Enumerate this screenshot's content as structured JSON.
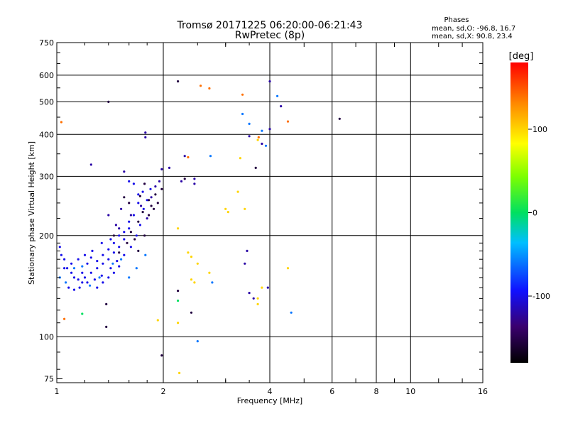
{
  "chart_data": {
    "type": "scatter",
    "title": "Tromsø 20171225 06:20:00-06:21:43",
    "subtitle": "RwPretec (8p)",
    "xlabel": "Frequency [MHz]",
    "ylabel": "Stationary phase Virtual Height [km]",
    "x_scale": "log",
    "y_scale": "log",
    "xlim": [
      1,
      16
    ],
    "ylim": [
      73,
      750
    ],
    "x_ticks": [
      1,
      2,
      4,
      6,
      8,
      10,
      16
    ],
    "y_ticks": [
      75,
      100,
      200,
      300,
      400,
      500,
      600,
      750
    ],
    "grid": true,
    "legend": {
      "title": "Phases",
      "lines": [
        "mean, sd,O: -96.8, 16.7",
        "mean, sd,X:  90.8, 23.4"
      ],
      "position": "top-right"
    },
    "colorbar": {
      "label": "[deg]",
      "range": [
        -180,
        180
      ],
      "ticks": [
        100,
        0,
        -100
      ],
      "colormap": "rainbow"
    },
    "colorbar_ticks_text": [
      "100",
      "0",
      "-100"
    ],
    "series": [
      {
        "phase_deg": -100,
        "points": [
          [
            1.02,
            185
          ],
          [
            1.03,
            175
          ],
          [
            1.05,
            170
          ],
          [
            1.07,
            160
          ],
          [
            1.1,
            155
          ],
          [
            1.12,
            150
          ],
          [
            1.15,
            148
          ],
          [
            1.18,
            145
          ],
          [
            1.2,
            150
          ],
          [
            1.25,
            155
          ],
          [
            1.3,
            160
          ],
          [
            1.35,
            165
          ],
          [
            1.4,
            170
          ],
          [
            1.45,
            178
          ],
          [
            1.5,
            185
          ],
          [
            1.55,
            195
          ],
          [
            1.6,
            210
          ],
          [
            1.65,
            230
          ],
          [
            1.7,
            250
          ],
          [
            1.75,
            270
          ],
          [
            1.08,
            140
          ],
          [
            1.12,
            138
          ],
          [
            1.16,
            140
          ],
          [
            1.22,
            145
          ],
          [
            1.28,
            148
          ],
          [
            1.34,
            152
          ],
          [
            1.42,
            160
          ],
          [
            1.48,
            168
          ],
          [
            1.55,
            175
          ],
          [
            1.62,
            185
          ],
          [
            1.68,
            200
          ],
          [
            1.72,
            215
          ],
          [
            1.76,
            240
          ],
          [
            1.8,
            255
          ],
          [
            1.84,
            275
          ],
          [
            1.6,
            290
          ],
          [
            1.65,
            285
          ],
          [
            1.7,
            265
          ],
          [
            1.05,
            160
          ],
          [
            1.1,
            165
          ],
          [
            1.15,
            170
          ],
          [
            1.2,
            175
          ],
          [
            1.25,
            172
          ],
          [
            1.3,
            168
          ],
          [
            1.35,
            175
          ],
          [
            1.4,
            182
          ],
          [
            1.45,
            190
          ],
          [
            1.5,
            200
          ],
          [
            1.55,
            205
          ],
          [
            1.6,
            220
          ],
          [
            1.3,
            140
          ],
          [
            1.35,
            145
          ],
          [
            1.4,
            150
          ],
          [
            1.45,
            155
          ],
          [
            1.5,
            162
          ],
          [
            1.18,
            155
          ],
          [
            1.22,
            165
          ],
          [
            1.26,
            180
          ],
          [
            1.34,
            190
          ],
          [
            1.42,
            195
          ]
        ]
      },
      {
        "phase_deg": -120,
        "points": [
          [
            1.25,
            325
          ],
          [
            1.55,
            310
          ],
          [
            1.78,
            405
          ],
          [
            1.78,
            392
          ],
          [
            1.98,
            315
          ],
          [
            2.08,
            318
          ],
          [
            2.3,
            345
          ],
          [
            2.45,
            295
          ],
          [
            2.45,
            285
          ],
          [
            2.25,
            290
          ],
          [
            3.5,
            395
          ],
          [
            3.8,
            375
          ],
          [
            4.0,
            415
          ],
          [
            4.0,
            575
          ],
          [
            4.3,
            485
          ],
          [
            3.45,
            180
          ],
          [
            3.4,
            165
          ],
          [
            3.5,
            135
          ],
          [
            3.6,
            130
          ],
          [
            3.95,
            140
          ],
          [
            1.5,
            210
          ],
          [
            1.62,
            230
          ],
          [
            1.73,
            245
          ],
          [
            1.8,
            225
          ],
          [
            1.85,
            260
          ],
          [
            1.9,
            280
          ],
          [
            1.95,
            290
          ],
          [
            1.4,
            230
          ],
          [
            1.47,
            215
          ],
          [
            1.52,
            240
          ]
        ]
      },
      {
        "phase_deg": -155,
        "points": [
          [
            1.4,
            500
          ],
          [
            1.38,
            125
          ],
          [
            1.38,
            107
          ],
          [
            1.98,
            88
          ],
          [
            2.2,
            575
          ],
          [
            2.2,
            137
          ],
          [
            2.4,
            118
          ],
          [
            2.3,
            295
          ],
          [
            3.65,
            318
          ],
          [
            6.3,
            445
          ],
          [
            1.62,
            205
          ],
          [
            1.7,
            220
          ],
          [
            1.75,
            235
          ],
          [
            1.82,
            230
          ],
          [
            1.88,
            240
          ],
          [
            1.58,
            190
          ],
          [
            1.66,
            195
          ],
          [
            1.7,
            180
          ],
          [
            1.77,
            200
          ],
          [
            1.5,
            178
          ],
          [
            1.72,
            262
          ],
          [
            1.77,
            285
          ],
          [
            1.82,
            255
          ],
          [
            1.85,
            245
          ],
          [
            1.45,
            200
          ],
          [
            1.55,
            260
          ],
          [
            1.6,
            250
          ],
          [
            1.9,
            265
          ],
          [
            1.93,
            250
          ],
          [
            1.98,
            275
          ]
        ]
      },
      {
        "phase_deg": 0,
        "points": [
          [
            2.2,
            128
          ],
          [
            1.18,
            117
          ]
        ]
      },
      {
        "phase_deg": -60,
        "points": [
          [
            1.02,
            150
          ],
          [
            1.06,
            145
          ],
          [
            1.12,
            160
          ],
          [
            1.18,
            162
          ],
          [
            1.24,
            142
          ],
          [
            1.32,
            150
          ],
          [
            1.44,
            165
          ],
          [
            1.52,
            170
          ],
          [
            3.35,
            460
          ],
          [
            3.5,
            430
          ],
          [
            2.72,
            345
          ],
          [
            4.2,
            520
          ],
          [
            4.6,
            118
          ],
          [
            2.5,
            97
          ],
          [
            2.75,
            145
          ],
          [
            1.6,
            150
          ],
          [
            1.68,
            160
          ],
          [
            1.78,
            175
          ],
          [
            3.8,
            410
          ],
          [
            3.9,
            370
          ]
        ]
      },
      {
        "phase_deg": 100,
        "points": [
          [
            2.2,
            210
          ],
          [
            2.35,
            178
          ],
          [
            2.4,
            173
          ],
          [
            2.5,
            165
          ],
          [
            2.7,
            155
          ],
          [
            2.22,
            78
          ],
          [
            2.2,
            110
          ],
          [
            1.93,
            112
          ],
          [
            3.3,
            340
          ],
          [
            3.25,
            270
          ],
          [
            3.0,
            240
          ],
          [
            3.05,
            235
          ],
          [
            3.4,
            240
          ],
          [
            3.7,
            385
          ],
          [
            3.7,
            130
          ],
          [
            3.8,
            140
          ],
          [
            3.7,
            125
          ],
          [
            4.5,
            160
          ],
          [
            2.4,
            148
          ],
          [
            2.45,
            145
          ]
        ]
      },
      {
        "phase_deg": 140,
        "points": [
          [
            2.55,
            558
          ],
          [
            2.7,
            548
          ],
          [
            3.35,
            525
          ],
          [
            4.5,
            437
          ],
          [
            1.05,
            113
          ],
          [
            1.03,
            435
          ],
          [
            3.72,
            392
          ],
          [
            2.35,
            342
          ]
        ]
      }
    ]
  }
}
